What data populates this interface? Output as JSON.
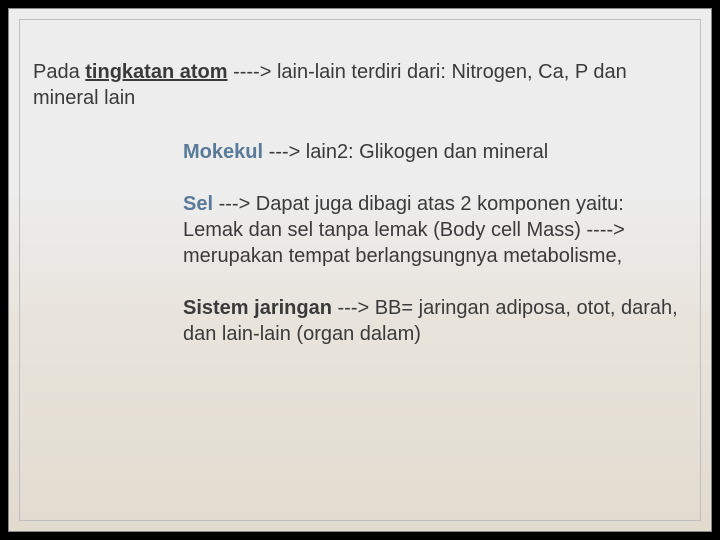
{
  "slide": {
    "background_gradient": [
      "#ededed",
      "#e2dccf"
    ],
    "outer_bg": "#000000",
    "border_color": "#bfbfbf",
    "font_family": "Verdana",
    "text_color": "#3a3a3a",
    "heading_color": "#5a7a9a",
    "font_size_pt": 15
  },
  "p1": {
    "pre": "Pada ",
    "bold": "tingkatan atom",
    "post": " ----> lain-lain terdiri dari: Nitrogen, Ca, P dan mineral lain"
  },
  "p2": {
    "bold": "Mokekul",
    "post": " ---> lain2: Glikogen dan mineral"
  },
  "p3": {
    "bold": "Sel",
    "post": " ---> Dapat juga dibagi atas 2 komponen yaitu:  Lemak dan sel tanpa lemak (Body cell Mass)       ----> merupakan tempat berlangsungnya metabolisme,"
  },
  "p4": {
    "bold": "Sistem jaringan",
    "post": " ---> BB= jaringan adiposa, otot, darah, dan lain-lain (organ dalam)"
  }
}
